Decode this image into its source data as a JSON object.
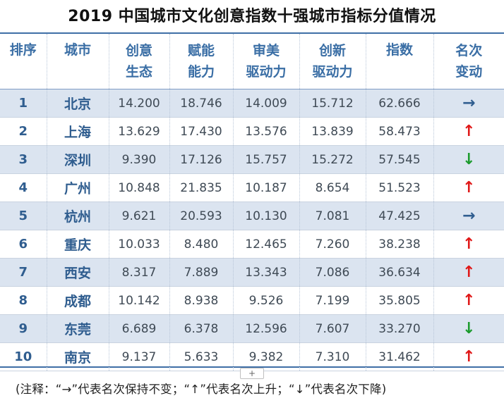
{
  "title": "2019 中国城市文化创意指数十强城市指标分值情况",
  "colors": {
    "header_text": "#3a6ea5",
    "row_shade": "#dbe4f0",
    "up": "#e01818",
    "down": "#1c9b2e",
    "flat": "#2f5d8f"
  },
  "columns": [
    {
      "line1": "排序",
      "line2": ""
    },
    {
      "line1": "城市",
      "line2": ""
    },
    {
      "line1": "创意",
      "line2": "生态"
    },
    {
      "line1": "赋能",
      "line2": "能力"
    },
    {
      "line1": "审美",
      "line2": "驱动力"
    },
    {
      "line1": "创新",
      "line2": "驱动力"
    },
    {
      "line1": "指数",
      "line2": ""
    },
    {
      "line1": "名次",
      "line2": "变动"
    }
  ],
  "rows": [
    {
      "rank": "1",
      "city": "北京",
      "creative": "14.200",
      "empower": "18.746",
      "aesthetic": "14.009",
      "innovation": "15.712",
      "index": "62.666",
      "change": "→",
      "change_type": "flat"
    },
    {
      "rank": "2",
      "city": "上海",
      "creative": "13.629",
      "empower": "17.430",
      "aesthetic": "13.576",
      "innovation": "13.839",
      "index": "58.473",
      "change": "↑",
      "change_type": "up"
    },
    {
      "rank": "3",
      "city": "深圳",
      "creative": "9.390",
      "empower": "17.126",
      "aesthetic": "15.757",
      "innovation": "15.272",
      "index": "57.545",
      "change": "↓",
      "change_type": "down"
    },
    {
      "rank": "4",
      "city": "广州",
      "creative": "10.848",
      "empower": "21.835",
      "aesthetic": "10.187",
      "innovation": "8.654",
      "index": "51.523",
      "change": "↑",
      "change_type": "up"
    },
    {
      "rank": "5",
      "city": "杭州",
      "creative": "9.621",
      "empower": "20.593",
      "aesthetic": "10.130",
      "innovation": "7.081",
      "index": "47.425",
      "change": "→",
      "change_type": "flat"
    },
    {
      "rank": "6",
      "city": "重庆",
      "creative": "10.033",
      "empower": "8.480",
      "aesthetic": "12.465",
      "innovation": "7.260",
      "index": "38.238",
      "change": "↑",
      "change_type": "up"
    },
    {
      "rank": "7",
      "city": "西安",
      "creative": "8.317",
      "empower": "7.889",
      "aesthetic": "13.343",
      "innovation": "7.086",
      "index": "36.634",
      "change": "↑",
      "change_type": "up"
    },
    {
      "rank": "8",
      "city": "成都",
      "creative": "10.142",
      "empower": "8.938",
      "aesthetic": "9.526",
      "innovation": "7.199",
      "index": "35.805",
      "change": "↑",
      "change_type": "up"
    },
    {
      "rank": "9",
      "city": "东莞",
      "creative": "6.689",
      "empower": "6.378",
      "aesthetic": "12.596",
      "innovation": "7.607",
      "index": "33.270",
      "change": "↓",
      "change_type": "down"
    },
    {
      "rank": "10",
      "city": "南京",
      "creative": "9.137",
      "empower": "5.633",
      "aesthetic": "9.382",
      "innovation": "7.310",
      "index": "31.462",
      "change": "↑",
      "change_type": "up"
    }
  ],
  "add_button_label": "+",
  "note": "(注释：“→”代表名次保持不变；“↑”代表名次上升；“↓”代表名次下降)"
}
